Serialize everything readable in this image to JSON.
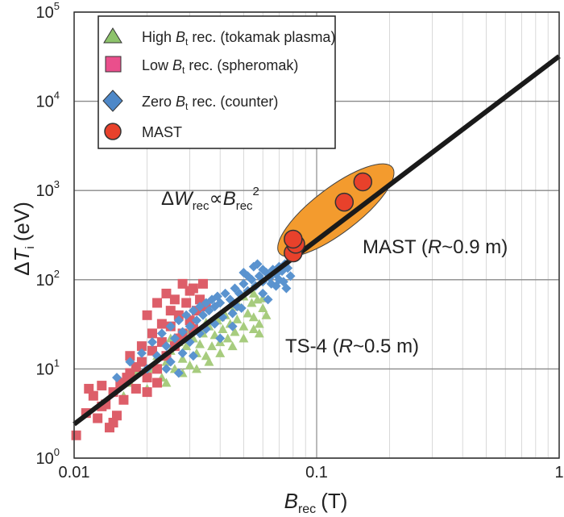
{
  "chart_data": {
    "type": "scatter",
    "xscale": "log",
    "yscale": "log",
    "xlim": [
      0.01,
      1
    ],
    "ylim": [
      1,
      100000
    ],
    "grid": true,
    "legend_position": "top-left",
    "x_ticks": [
      "0.01",
      "0.1",
      "1"
    ],
    "y_ticks": [
      {
        "base": "10",
        "exp": "0"
      },
      {
        "base": "10",
        "exp": "1"
      },
      {
        "base": "10",
        "exp": "2"
      },
      {
        "base": "10",
        "exp": "3"
      },
      {
        "base": "10",
        "exp": "4"
      },
      {
        "base": "10",
        "exp": "5"
      }
    ],
    "xlabel": {
      "main": "B",
      "sub": "rec",
      "unit": "(T)"
    },
    "ylabel": {
      "pre": "Δ",
      "main": "T",
      "sub": "i",
      "unit": "(eV)"
    },
    "legend": [
      {
        "pre": "High ",
        "var": "B",
        "sub": "t",
        "post": " rec. (tokamak plasma)",
        "marker": "triangle",
        "color": "#8dc36b"
      },
      {
        "pre": "Low ",
        "var": "B",
        "sub": "t",
        "post": " rec. (spheromak)",
        "marker": "square",
        "color": "#ea4f8c"
      },
      {
        "pre": "Zero ",
        "var": "B",
        "sub": "t",
        "post": " rec. (counter)",
        "marker": "diamond",
        "color": "#4e88c8"
      },
      {
        "pre": "MAST",
        "var": "",
        "sub": "",
        "post": "",
        "marker": "circle",
        "color": "#e8412b"
      }
    ],
    "annotations": {
      "scaling": {
        "pre": "Δ",
        "w": "W",
        "wsub": "rec",
        "prop": "∝",
        "b": "B",
        "bsub": "rec",
        "sup": "2"
      },
      "mast": {
        "pre": "MAST (",
        "var": "R",
        "post": "~0.9 m)"
      },
      "ts4": {
        "pre": "TS-4 (",
        "var": "R",
        "post": "~0.5 m)"
      }
    },
    "fit_line": {
      "x": [
        0.01,
        1
      ],
      "y": [
        2.4,
        32000
      ],
      "color": "#1a1a1a"
    },
    "mast_region": {
      "color": "#f39b2e",
      "x_center": 0.12,
      "y_center": 600
    },
    "series": [
      {
        "name": "High Bt rec. (tokamak plasma)",
        "marker": "triangle",
        "color": "#a7cc7e",
        "points": [
          [
            0.017,
            7
          ],
          [
            0.018,
            9
          ],
          [
            0.019,
            12
          ],
          [
            0.02,
            6
          ],
          [
            0.021,
            10
          ],
          [
            0.022,
            14
          ],
          [
            0.023,
            8
          ],
          [
            0.024,
            12
          ],
          [
            0.025,
            16
          ],
          [
            0.026,
            10
          ],
          [
            0.027,
            20
          ],
          [
            0.028,
            13
          ],
          [
            0.029,
            18
          ],
          [
            0.03,
            11
          ],
          [
            0.031,
            22
          ],
          [
            0.032,
            15
          ],
          [
            0.033,
            19
          ],
          [
            0.034,
            25
          ],
          [
            0.035,
            14
          ],
          [
            0.036,
            30
          ],
          [
            0.037,
            18
          ],
          [
            0.038,
            24
          ],
          [
            0.039,
            35
          ],
          [
            0.04,
            20
          ],
          [
            0.041,
            28
          ],
          [
            0.042,
            40
          ],
          [
            0.043,
            22
          ],
          [
            0.044,
            32
          ],
          [
            0.045,
            45
          ],
          [
            0.046,
            26
          ],
          [
            0.047,
            36
          ],
          [
            0.048,
            50
          ],
          [
            0.05,
            30
          ],
          [
            0.052,
            42
          ],
          [
            0.054,
            55
          ],
          [
            0.055,
            38
          ],
          [
            0.057,
            60
          ],
          [
            0.058,
            32
          ],
          [
            0.06,
            48
          ],
          [
            0.062,
            40
          ],
          [
            0.016,
            5
          ],
          [
            0.02,
            8
          ],
          [
            0.024,
            7
          ],
          [
            0.028,
            9
          ],
          [
            0.032,
            10
          ],
          [
            0.036,
            12
          ],
          [
            0.04,
            15
          ],
          [
            0.045,
            18
          ],
          [
            0.05,
            22
          ],
          [
            0.055,
            28
          ],
          [
            0.021,
            17
          ],
          [
            0.025,
            22
          ],
          [
            0.03,
            27
          ],
          [
            0.035,
            33
          ],
          [
            0.04,
            38
          ],
          [
            0.045,
            55
          ],
          [
            0.05,
            65
          ],
          [
            0.055,
            70
          ],
          [
            0.06,
            62
          ],
          [
            0.058,
            25
          ]
        ]
      },
      {
        "name": "Low Bt rec. (spheromak)",
        "marker": "square",
        "color": "#dd5e69",
        "points": [
          [
            0.0102,
            1.8
          ],
          [
            0.0112,
            3.2
          ],
          [
            0.012,
            5
          ],
          [
            0.0125,
            2.8
          ],
          [
            0.013,
            6.5
          ],
          [
            0.0135,
            4
          ],
          [
            0.014,
            2.2
          ],
          [
            0.0145,
            5.5
          ],
          [
            0.015,
            3
          ],
          [
            0.0155,
            7
          ],
          [
            0.016,
            4.5
          ],
          [
            0.017,
            9
          ],
          [
            0.018,
            6
          ],
          [
            0.019,
            12
          ],
          [
            0.02,
            8
          ],
          [
            0.021,
            16
          ],
          [
            0.022,
            10
          ],
          [
            0.023,
            20
          ],
          [
            0.024,
            14
          ],
          [
            0.025,
            30
          ],
          [
            0.026,
            18
          ],
          [
            0.027,
            40
          ],
          [
            0.028,
            25
          ],
          [
            0.029,
            55
          ],
          [
            0.03,
            35
          ],
          [
            0.031,
            80
          ],
          [
            0.032,
            45
          ],
          [
            0.033,
            60
          ],
          [
            0.034,
            90
          ],
          [
            0.035,
            50
          ],
          [
            0.02,
            40
          ],
          [
            0.022,
            55
          ],
          [
            0.024,
            70
          ],
          [
            0.026,
            60
          ],
          [
            0.028,
            90
          ],
          [
            0.03,
            75
          ],
          [
            0.021,
            25
          ],
          [
            0.019,
            18
          ],
          [
            0.023,
            32
          ],
          [
            0.025,
            45
          ],
          [
            0.0115,
            6
          ],
          [
            0.013,
            3.8
          ],
          [
            0.0145,
            2.5
          ],
          [
            0.0165,
            8
          ],
          [
            0.018,
            10.5
          ],
          [
            0.02,
            5.5
          ],
          [
            0.022,
            7
          ],
          [
            0.017,
            14
          ],
          [
            0.027,
            22
          ],
          [
            0.031,
            28
          ]
        ]
      },
      {
        "name": "Zero Bt rec. (counter)",
        "marker": "diamond",
        "color": "#5a93cf",
        "points": [
          [
            0.015,
            8
          ],
          [
            0.017,
            12
          ],
          [
            0.019,
            15
          ],
          [
            0.02,
            10
          ],
          [
            0.021,
            20
          ],
          [
            0.022,
            14
          ],
          [
            0.023,
            25
          ],
          [
            0.024,
            18
          ],
          [
            0.025,
            30
          ],
          [
            0.026,
            22
          ],
          [
            0.027,
            35
          ],
          [
            0.028,
            26
          ],
          [
            0.029,
            40
          ],
          [
            0.03,
            30
          ],
          [
            0.031,
            45
          ],
          [
            0.032,
            35
          ],
          [
            0.033,
            50
          ],
          [
            0.034,
            40
          ],
          [
            0.035,
            55
          ],
          [
            0.036,
            45
          ],
          [
            0.037,
            60
          ],
          [
            0.038,
            50
          ],
          [
            0.039,
            65
          ],
          [
            0.04,
            55
          ],
          [
            0.042,
            70
          ],
          [
            0.044,
            60
          ],
          [
            0.046,
            80
          ],
          [
            0.048,
            70
          ],
          [
            0.05,
            90
          ],
          [
            0.052,
            75
          ],
          [
            0.054,
            100
          ],
          [
            0.056,
            85
          ],
          [
            0.058,
            110
          ],
          [
            0.06,
            95
          ],
          [
            0.062,
            120
          ],
          [
            0.064,
            105
          ],
          [
            0.066,
            130
          ],
          [
            0.068,
            115
          ],
          [
            0.07,
            140
          ],
          [
            0.072,
            125
          ],
          [
            0.074,
            150
          ],
          [
            0.076,
            135
          ],
          [
            0.05,
            120
          ],
          [
            0.055,
            140
          ],
          [
            0.06,
            130
          ],
          [
            0.065,
            90
          ],
          [
            0.07,
            100
          ],
          [
            0.075,
            80
          ],
          [
            0.052,
            110
          ],
          [
            0.057,
            150
          ],
          [
            0.025,
            12
          ],
          [
            0.028,
            15
          ],
          [
            0.03,
            20
          ],
          [
            0.033,
            25
          ],
          [
            0.035,
            28
          ],
          [
            0.038,
            32
          ],
          [
            0.041,
            38
          ],
          [
            0.045,
            42
          ],
          [
            0.047,
            50
          ],
          [
            0.049,
            48
          ],
          [
            0.024,
            10
          ],
          [
            0.027,
            9
          ],
          [
            0.031,
            14
          ],
          [
            0.04,
            22
          ],
          [
            0.045,
            30
          ],
          [
            0.06,
            70
          ],
          [
            0.063,
            60
          ],
          [
            0.068,
            85
          ],
          [
            0.073,
            95
          ],
          [
            0.078,
            110
          ]
        ]
      },
      {
        "name": "MAST",
        "marker": "circle",
        "color": "#e8412b",
        "points": [
          [
            0.08,
            200
          ],
          [
            0.082,
            250
          ],
          [
            0.08,
            285
          ],
          [
            0.13,
            740
          ],
          [
            0.155,
            1250
          ]
        ]
      }
    ]
  }
}
